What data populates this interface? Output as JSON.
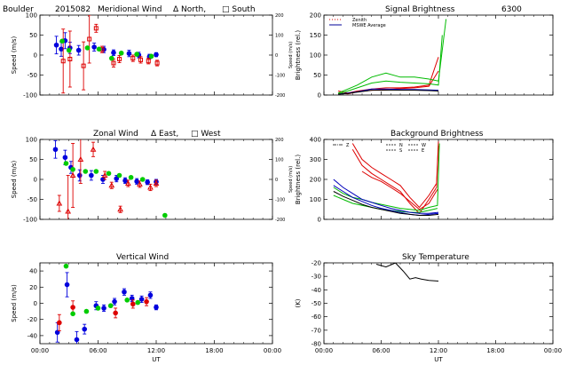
{
  "chart_data": [
    {
      "id": "meridional",
      "type": "scatter",
      "title_parts": [
        "Boulder",
        "2015082",
        "Meridional Wind",
        "Δ North,",
        "□ South"
      ],
      "ylabel": "Speed (m/s)",
      "ylabel_right": "Speed (m/s)",
      "xlim": [
        0,
        24
      ],
      "ylim": [
        -100,
        100
      ],
      "ylim_right": [
        -200,
        200
      ],
      "x_ticks": [
        0,
        6,
        12,
        18,
        24
      ],
      "x_tick_labels": [],
      "y_ticks": [
        -100,
        -50,
        0,
        50,
        100
      ],
      "y_ticks_right": [
        -200,
        -100,
        0,
        100,
        200
      ],
      "grid": false,
      "series": [
        {
          "color": "#0000dd",
          "marker": "circle",
          "x": [
            1.7,
            2.2,
            2.6,
            3.1,
            4.0,
            5.6,
            6.6,
            7.6,
            9.2,
            10.2,
            11.3,
            12.0
          ],
          "y": [
            25,
            15,
            36,
            18,
            12,
            20,
            14,
            6,
            4,
            0,
            -4,
            1
          ],
          "err": [
            22,
            18,
            20,
            14,
            12,
            10,
            8,
            7,
            8,
            7,
            6,
            5
          ]
        },
        {
          "color": "#dd0000",
          "marker": "square",
          "x": [
            2.4,
            3.1,
            4.5,
            5.1,
            5.8,
            6.4,
            7.6,
            8.2,
            9.6,
            10.4,
            11.2,
            12.1
          ],
          "y": [
            -15,
            -10,
            -27,
            40,
            67,
            14,
            -20,
            -10,
            -8,
            -12,
            -15,
            -20
          ],
          "err": [
            80,
            70,
            60,
            60,
            10,
            8,
            10,
            9,
            8,
            8,
            7,
            7
          ]
        },
        {
          "color": "#00cc00",
          "marker": "circle",
          "x": [
            2.3,
            3.0,
            4.9,
            6.1,
            7.4,
            8.4,
            10.0,
            11.5
          ],
          "y": [
            35,
            12,
            18,
            15,
            -8,
            5,
            2,
            -3
          ],
          "err": [
            0,
            0,
            0,
            0,
            0,
            0,
            0,
            0
          ]
        }
      ]
    },
    {
      "id": "signal",
      "type": "line",
      "title_parts": [
        "Signal Brightness",
        "6300"
      ],
      "ylabel": "Brightness (rel.)",
      "xlim": [
        0,
        24
      ],
      "ylim": [
        0,
        200
      ],
      "x_ticks": [
        0,
        6,
        12,
        18,
        24
      ],
      "x_tick_labels": [],
      "y_ticks": [
        0,
        50,
        100,
        150,
        200
      ],
      "grid": false,
      "legend": {
        "position": "top-left",
        "entries": [
          "Zenith",
          "MSWE Average"
        ]
      },
      "series": [
        {
          "color": "#dd0000",
          "x": [
            1.5,
            2.5,
            3.5,
            5,
            6.5,
            8,
            9.5,
            11,
            12
          ],
          "y": [
            10,
            5,
            10,
            15,
            18,
            18,
            20,
            25,
            95
          ]
        },
        {
          "color": "#dd0000",
          "x": [
            1.5,
            2.5,
            3.5,
            5,
            6.5,
            8,
            9.5,
            11,
            12
          ],
          "y": [
            5,
            3,
            8,
            12,
            14,
            16,
            18,
            22,
            60
          ]
        },
        {
          "color": "#00bb00",
          "x": [
            1.5,
            2.5,
            3.5,
            5,
            6.5,
            8,
            9.5,
            11,
            12,
            12.8
          ],
          "y": [
            5,
            15,
            25,
            45,
            55,
            45,
            45,
            40,
            35,
            190
          ]
        },
        {
          "color": "#00bb00",
          "x": [
            1.5,
            2.5,
            3.5,
            5,
            6.5,
            8,
            9.5,
            11,
            12,
            12.4
          ],
          "y": [
            3,
            10,
            18,
            30,
            35,
            32,
            30,
            28,
            25,
            150
          ]
        },
        {
          "color": "#0000bb",
          "x": [
            1.5,
            2.5,
            3.5,
            5,
            6.5,
            8,
            9.5,
            11,
            12
          ],
          "y": [
            2,
            5,
            8,
            15,
            15,
            14,
            14,
            13,
            12
          ]
        },
        {
          "color": "#000000",
          "x": [
            1.5,
            2.5,
            3.5,
            5,
            6.5,
            8,
            9.5,
            11,
            12
          ],
          "y": [
            2,
            4,
            7,
            12,
            12,
            12,
            12,
            11,
            10
          ]
        }
      ]
    },
    {
      "id": "zonal",
      "type": "scatter",
      "title_parts": [
        "Zonal Wind",
        "Δ East,",
        "□ West"
      ],
      "ylabel": "Speed (m/s)",
      "ylabel_right": "Speed (m/s)",
      "xlim": [
        0,
        24
      ],
      "ylim": [
        -100,
        100
      ],
      "ylim_right": [
        -200,
        200
      ],
      "x_ticks": [
        0,
        6,
        12,
        18,
        24
      ],
      "x_tick_labels": [],
      "y_ticks": [
        -100,
        -50,
        0,
        50,
        100
      ],
      "y_ticks_right": [
        -200,
        -100,
        0,
        100,
        200
      ],
      "grid": false,
      "series": [
        {
          "color": "#0000dd",
          "marker": "circle",
          "x": [
            1.6,
            2.6,
            3.2,
            4.1,
            5.3,
            6.5,
            7.9,
            8.8,
            10.0,
            11.1,
            12.0
          ],
          "y": [
            75,
            55,
            30,
            10,
            10,
            0,
            2,
            -3,
            -5,
            -7,
            -6
          ],
          "err": [
            22,
            18,
            15,
            14,
            12,
            10,
            8,
            7,
            7,
            6,
            6
          ]
        },
        {
          "color": "#dd0000",
          "marker": "triangle",
          "x": [
            2.0,
            2.9,
            3.4,
            4.2,
            5.5,
            6.7,
            7.4,
            8.3,
            9.1,
            10.3,
            11.4,
            12.0
          ],
          "y": [
            -60,
            -80,
            10,
            50,
            75,
            10,
            -15,
            -75,
            -10,
            -12,
            -20,
            -10
          ],
          "err": [
            20,
            90,
            80,
            60,
            18,
            10,
            8,
            8,
            8,
            8,
            8,
            8
          ]
        },
        {
          "color": "#00cc00",
          "marker": "circle",
          "x": [
            2.7,
            3.4,
            4.7,
            5.8,
            7.1,
            8.2,
            9.4,
            10.6,
            12.9
          ],
          "y": [
            40,
            25,
            20,
            20,
            15,
            10,
            5,
            0,
            -90
          ],
          "err": [
            0,
            0,
            0,
            0,
            0,
            0,
            0,
            0,
            0
          ]
        }
      ]
    },
    {
      "id": "background",
      "type": "line",
      "title_parts": [
        "Background Brightness"
      ],
      "ylabel": "Brightness (rel.)",
      "xlim": [
        0,
        24
      ],
      "ylim": [
        0,
        400
      ],
      "x_ticks": [
        0,
        6,
        12,
        18,
        24
      ],
      "x_tick_labels": [],
      "y_ticks": [
        0,
        100,
        200,
        300,
        400
      ],
      "grid": false,
      "legend": {
        "position": "top-left",
        "entries": [
          "Z",
          "N",
          "S",
          "W",
          "E"
        ]
      },
      "series": [
        {
          "color": "#dd0000",
          "x": [
            3,
            4,
            5,
            6,
            7,
            8,
            9,
            10,
            11,
            11.8,
            12
          ],
          "y": [
            380,
            300,
            260,
            230,
            200,
            170,
            110,
            60,
            120,
            180,
            390
          ]
        },
        {
          "color": "#dd0000",
          "x": [
            3,
            4,
            5,
            6,
            7,
            8,
            9,
            10,
            11,
            11.8,
            12
          ],
          "y": [
            350,
            270,
            230,
            200,
            170,
            140,
            80,
            30,
            100,
            160,
            370
          ]
        },
        {
          "color": "#dd0000",
          "x": [
            4,
            5,
            6,
            7,
            8,
            9,
            10,
            11,
            11.9
          ],
          "y": [
            240,
            210,
            190,
            160,
            130,
            90,
            50,
            80,
            150
          ]
        },
        {
          "color": "#00bb00",
          "x": [
            1,
            2,
            3,
            4,
            5,
            6,
            7,
            8,
            9,
            10,
            11,
            11.9,
            12.1
          ],
          "y": [
            160,
            130,
            110,
            100,
            85,
            75,
            65,
            55,
            50,
            45,
            60,
            70,
            380
          ]
        },
        {
          "color": "#00bb00",
          "x": [
            1,
            2,
            3,
            4,
            5,
            6,
            7,
            8,
            9,
            10,
            11,
            11.9
          ],
          "y": [
            120,
            100,
            80,
            70,
            60,
            50,
            45,
            40,
            35,
            35,
            45,
            55
          ]
        },
        {
          "color": "#0000bb",
          "x": [
            1,
            2,
            3,
            4,
            5,
            6,
            7,
            8,
            9,
            10,
            11,
            12
          ],
          "y": [
            200,
            160,
            130,
            100,
            85,
            70,
            55,
            45,
            35,
            30,
            30,
            35
          ]
        },
        {
          "color": "#0000bb",
          "x": [
            1,
            2,
            3,
            4,
            5,
            6,
            7,
            8,
            9,
            10,
            11,
            12
          ],
          "y": [
            170,
            140,
            110,
            90,
            70,
            55,
            45,
            35,
            25,
            20,
            25,
            30
          ]
        },
        {
          "color": "#000000",
          "x": [
            1,
            2,
            3,
            4,
            5,
            6,
            7,
            8,
            9,
            10,
            11,
            12
          ],
          "y": [
            140,
            115,
            95,
            75,
            60,
            50,
            40,
            30,
            25,
            20,
            20,
            25
          ]
        }
      ]
    },
    {
      "id": "vertical",
      "type": "scatter",
      "title_parts": [
        "Vertical Wind"
      ],
      "ylabel": "Speed (m/s)",
      "xlim": [
        0,
        24
      ],
      "ylim": [
        -50,
        50
      ],
      "x_ticks": [
        0,
        6,
        12,
        18,
        24
      ],
      "x_tick_labels": [
        "00:00",
        "06:00",
        "12:00",
        "18:00",
        "00:00"
      ],
      "xlabel": "UT",
      "y_ticks": [
        -40,
        -20,
        0,
        20,
        40
      ],
      "grid": false,
      "series": [
        {
          "color": "#0000dd",
          "marker": "circle",
          "x": [
            1.8,
            2.8,
            3.8,
            4.6,
            5.8,
            6.6,
            7.7,
            8.7,
            9.5,
            10.5,
            11.4,
            12.0
          ],
          "y": [
            -36,
            23,
            -45,
            -32,
            -3,
            -6,
            2,
            14,
            6,
            5,
            10,
            -5
          ],
          "err": [
            12,
            15,
            10,
            6,
            5,
            4,
            4,
            4,
            4,
            4,
            4,
            3
          ]
        },
        {
          "color": "#dd0000",
          "marker": "circle",
          "x": [
            2.0,
            3.4,
            7.8,
            9.6,
            11.0
          ],
          "y": [
            -24,
            -5,
            -12,
            -1,
            2
          ],
          "err": [
            10,
            8,
            6,
            5,
            5
          ]
        },
        {
          "color": "#00cc00",
          "marker": "circle",
          "x": [
            2.7,
            3.4,
            4.8,
            6.0,
            7.3,
            9.0,
            10.1
          ],
          "y": [
            46,
            -13,
            -10,
            -6,
            -3,
            4,
            1
          ],
          "err": [
            0,
            0,
            0,
            0,
            0,
            0,
            0
          ]
        }
      ]
    },
    {
      "id": "sky",
      "type": "line",
      "title_parts": [
        "Sky Temperature"
      ],
      "ylabel": "(K)",
      "xlim": [
        0,
        24
      ],
      "ylim": [
        -80,
        -20
      ],
      "x_ticks": [
        0,
        6,
        12,
        18,
        24
      ],
      "x_tick_labels": [
        "00:00",
        "06:00",
        "12:00",
        "18:00",
        "00:00"
      ],
      "xlabel": "UT",
      "y_ticks": [
        -80,
        -70,
        -60,
        -50,
        -40,
        -30,
        -20
      ],
      "grid": false,
      "series": [
        {
          "color": "#000000",
          "x": [
            5.5,
            6.5,
            7.5,
            8.3,
            9.0,
            9.6,
            10.2,
            11.0,
            12.0
          ],
          "y": [
            -21,
            -23,
            -20,
            -26,
            -32,
            -31,
            -32,
            -33,
            -33.5
          ]
        }
      ]
    }
  ]
}
